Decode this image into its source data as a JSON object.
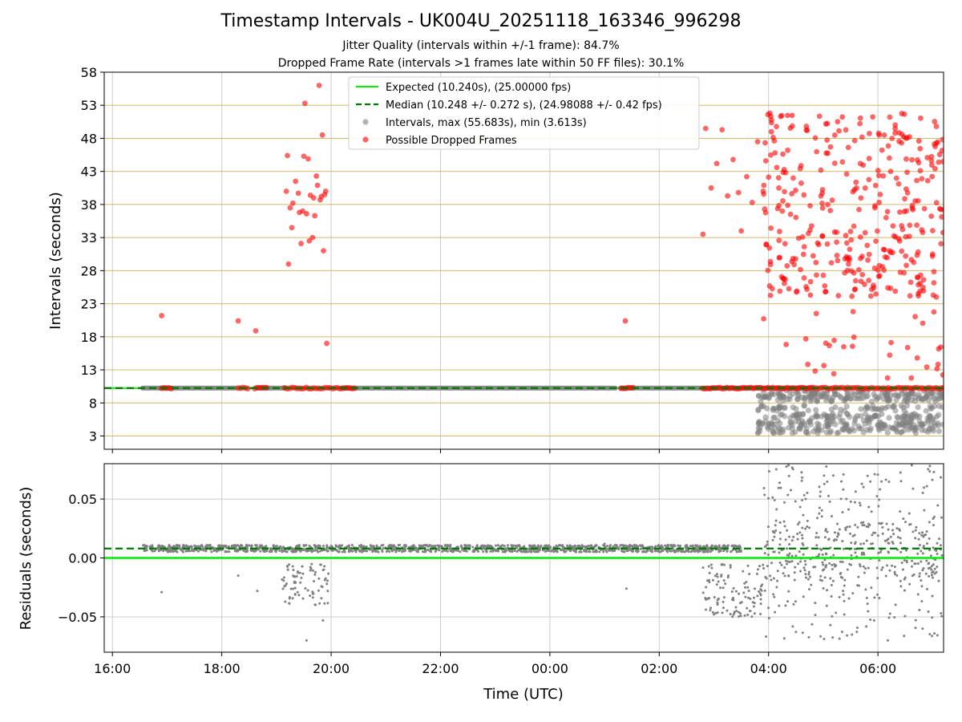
{
  "title": "Timestamp Intervals - UK004U_20251118_163346_996298",
  "subtitle1": "Jitter Quality (intervals within +/-1 frame): 84.7%",
  "subtitle2": "Dropped Frame Rate (intervals >1 frames late within 50 FF files): 30.1%",
  "colors": {
    "expected": "#00ee00",
    "median": "#007700",
    "intervals": "#808080",
    "dropped": "#ff0000",
    "hgrid": "#d4b86a",
    "vgrid": "#cccccc"
  },
  "chart_data": [
    {
      "type": "scatter",
      "panel": "top",
      "title": "",
      "xlabel": "",
      "ylabel": "Intervals (seconds)",
      "x_unit": "hours since 16:00 UTC",
      "xlim": [
        -0.15,
        15.2
      ],
      "ylim": [
        1.0,
        58.0
      ],
      "yticks": [
        3,
        8,
        13,
        18,
        23,
        28,
        33,
        38,
        43,
        48,
        53,
        58
      ],
      "ytick_labels": [
        "3",
        "8",
        "13",
        "18",
        "23",
        "28",
        "33",
        "38",
        "43",
        "48",
        "53",
        "58"
      ],
      "xticks": [
        0,
        2,
        4,
        6,
        8,
        10,
        12,
        14
      ],
      "expected_value": 10.24,
      "median_value": 10.248,
      "legend": [
        {
          "key": "expected",
          "label": "Expected (10.240s), (25.00000 fps)"
        },
        {
          "key": "median",
          "label": "Median (10.248 +/- 0.272 s), (24.98088 +/- 0.42 fps)"
        },
        {
          "key": "intervals",
          "label": "Intervals, max (55.683s), min (3.613s)"
        },
        {
          "key": "dropped",
          "label": "Possible Dropped Frames"
        }
      ],
      "series": [
        {
          "name": "Intervals (normal)",
          "color": "#808080",
          "segments": [
            [
              0.55,
              2.25
            ],
            [
              2.65,
              3.15
            ],
            [
              4.2,
              9.2
            ],
            [
              9.3,
              12.8
            ]
          ],
          "normal_value": 10.24,
          "lower_cluster": {
            "x_range": [
              11.8,
              15.2
            ],
            "values": [
              3.8,
              4.5,
              5.0,
              6.0,
              7.2,
              8.6,
              9.2,
              9.6
            ]
          }
        },
        {
          "name": "Possible Dropped Frames",
          "color": "#ff0000",
          "baseline_segments": [
            [
              0.9,
              1.1
            ],
            [
              2.3,
              2.5
            ],
            [
              2.6,
              2.85
            ],
            [
              3.15,
              4.45
            ],
            [
              9.3,
              9.55
            ],
            [
              10.8,
              15.2
            ]
          ],
          "baseline_value": 10.24,
          "points": [
            [
              0.9,
              21.2
            ],
            [
              2.3,
              20.4
            ],
            [
              2.62,
              18.9
            ],
            [
              9.38,
              20.4
            ],
            [
              3.2,
              45.4
            ],
            [
              3.25,
              37.5
            ],
            [
              3.3,
              38.2
            ],
            [
              3.35,
              41.5
            ],
            [
              3.4,
              39.7
            ],
            [
              3.45,
              32.1
            ],
            [
              3.5,
              45.3
            ],
            [
              3.52,
              53.3
            ],
            [
              3.55,
              36.6
            ],
            [
              3.58,
              44.9
            ],
            [
              3.62,
              39.4
            ],
            [
              3.66,
              33.0
            ],
            [
              3.7,
              36.3
            ],
            [
              3.73,
              42.3
            ],
            [
              3.75,
              40.9
            ],
            [
              3.78,
              56.0
            ],
            [
              3.8,
              38.7
            ],
            [
              3.84,
              48.5
            ],
            [
              3.86,
              31.0
            ],
            [
              3.88,
              39.5
            ],
            [
              3.9,
              40.0
            ],
            [
              3.92,
              17.0
            ],
            [
              3.22,
              29.0
            ],
            [
              3.28,
              34.5
            ],
            [
              3.18,
              40.0
            ],
            [
              3.42,
              36.8
            ],
            [
              3.48,
              37.0
            ],
            [
              3.6,
              32.5
            ],
            [
              3.68,
              39.0
            ],
            [
              3.82,
              39.2
            ],
            [
              10.8,
              33.5
            ],
            [
              10.85,
              49.5
            ],
            [
              10.95,
              40.5
            ],
            [
              11.05,
              44.2
            ],
            [
              11.15,
              49.3
            ],
            [
              11.25,
              39.3
            ],
            [
              11.35,
              44.8
            ],
            [
              11.45,
              39.8
            ],
            [
              11.5,
              34.0
            ],
            [
              11.6,
              42.2
            ],
            [
              11.7,
              38.3
            ],
            [
              11.8,
              47.5
            ],
            [
              11.9,
              40.0
            ],
            [
              11.95,
              44.6
            ],
            [
              12.05,
              49.0
            ],
            [
              12.15,
              43.6
            ],
            [
              12.25,
              37.0
            ],
            [
              12.35,
              46.2
            ],
            [
              12.45,
              42.0
            ],
            [
              12.55,
              32.9
            ]
          ],
          "scatter_cloud": {
            "x_range": [
              11.9,
              15.2
            ],
            "y_range": [
              11.0,
              52.0
            ]
          }
        }
      ]
    },
    {
      "type": "scatter",
      "panel": "bottom",
      "title": "",
      "xlabel": "Time (UTC)",
      "ylabel": "Residuals (seconds)",
      "x_unit": "hours since 16:00 UTC",
      "xlim": [
        -0.15,
        15.2
      ],
      "ylim": [
        -0.08,
        0.08
      ],
      "yticks": [
        0.05,
        0.0,
        -0.05
      ],
      "ytick_labels": [
        "0.05",
        "0.00",
        "−0.05"
      ],
      "xticks": [
        0,
        2,
        4,
        6,
        8,
        10,
        12,
        14
      ],
      "xtick_labels": [
        "16:00",
        "18:00",
        "20:00",
        "22:00",
        "00:00",
        "02:00",
        "04:00",
        "06:00"
      ],
      "expected_line": 0.0,
      "median_line": 0.008,
      "series": [
        {
          "name": "Residuals",
          "color": "#808080",
          "dense_band": {
            "x_range": [
              0.55,
              11.5
            ],
            "value": 0.008,
            "spread": 0.003
          },
          "scatter_regions": [
            {
              "x_range": [
                3.1,
                3.95
              ],
              "y_range": [
                -0.04,
                -0.005
              ]
            },
            {
              "x_range": [
                10.8,
                11.9
              ],
              "y_range": [
                -0.05,
                -0.005
              ]
            },
            {
              "x_range": [
                11.9,
                15.2
              ],
              "y_range": [
                -0.07,
                0.08
              ]
            }
          ],
          "points": [
            [
              0.9,
              -0.029
            ],
            [
              2.3,
              -0.015
            ],
            [
              2.65,
              -0.028
            ],
            [
              9.4,
              -0.026
            ],
            [
              3.55,
              -0.07
            ],
            [
              3.85,
              -0.053
            ],
            [
              9.0,
              0.012
            ]
          ]
        }
      ]
    }
  ]
}
